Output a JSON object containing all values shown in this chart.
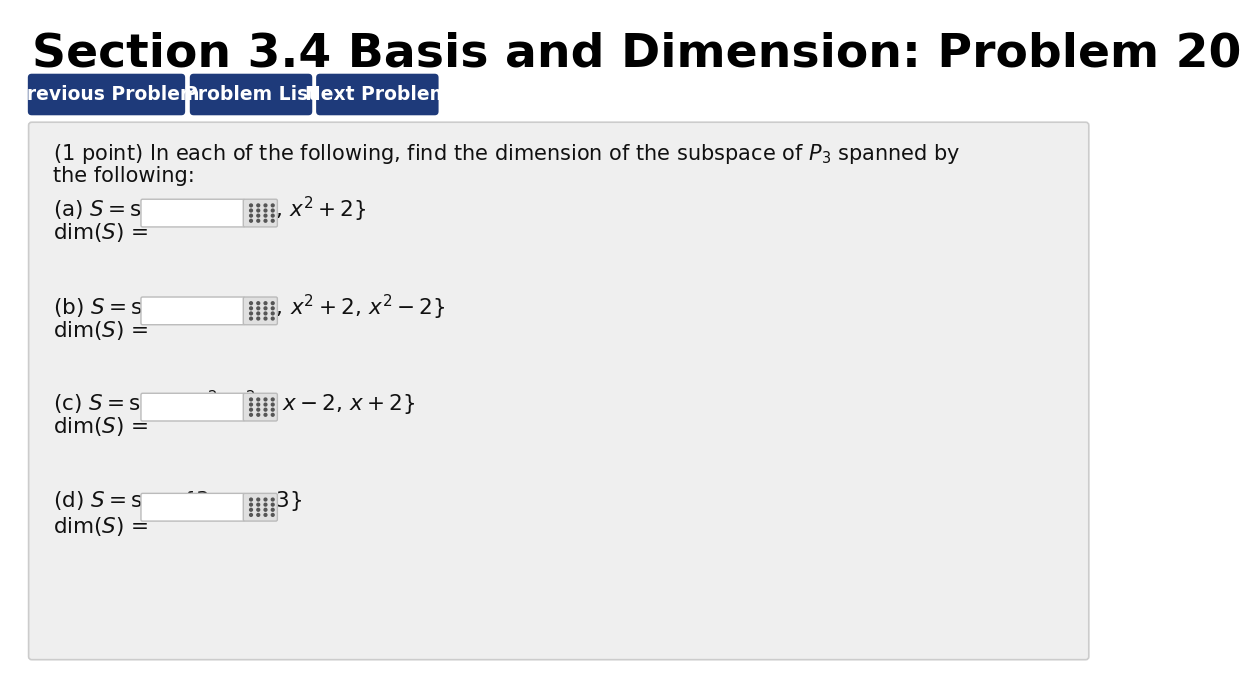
{
  "title": "Section 3.4 Basis and Dimension: Problem 20",
  "title_fontsize": 34,
  "title_fontweight": "bold",
  "bg_color": "#ffffff",
  "button_color": "#1e3a7a",
  "button_text_color": "#ffffff",
  "button_labels": [
    "Previous Problem",
    "Problem List",
    "Next Problem"
  ],
  "button_fontsize": 13.5,
  "panel_bg": "#efefef",
  "panel_border": "#cccccc",
  "part_equations": [
    "(a) $S = \\mathrm{span}\\{x,\\, x - 2,\\, x^2 + 2\\}$",
    "(b) $S = \\mathrm{span}\\{x,\\, x - 2,\\, x^2 + 2,\\, x^2 - 2\\}$",
    "(c) $S = \\mathrm{span}\\{x^2,\\, x^2 - x - 2,\\, x + 2\\}$",
    "(d) $S = \\mathrm{span}\\{3x,\\, x - 3\\}$"
  ],
  "dim_label": "dim$(S)$ ="
}
